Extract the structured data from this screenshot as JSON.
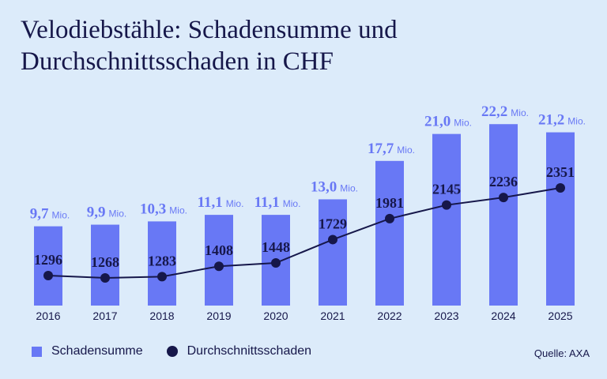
{
  "title": "Velodiebstähle: Schadensumme und Durchschnittsschaden in CHF",
  "source": "Quelle: AXA",
  "legend": {
    "bar_label": "Schadensumme",
    "line_label": "Durchschnittsschaden"
  },
  "colors": {
    "background": "#dcebfa",
    "bar": "#6878f5",
    "bar_label": "#6878f5",
    "line": "#16174a"
  },
  "chart_data": {
    "type": "bar",
    "categories": [
      "2016",
      "2017",
      "2018",
      "2019",
      "2020",
      "2021",
      "2022",
      "2023",
      "2024",
      "2025"
    ],
    "series": [
      {
        "name": "Schadensumme",
        "type": "bar",
        "values": [
          9.7,
          9.9,
          10.3,
          11.1,
          11.1,
          13.0,
          17.7,
          21.0,
          22.2,
          21.2
        ],
        "labels": [
          "9,7",
          "9,9",
          "10,3",
          "11,1",
          "11,1",
          "13,0",
          "17,7",
          "21,0",
          "22,2",
          "21,2"
        ],
        "unit": "Mio."
      },
      {
        "name": "Durchschnittsschaden",
        "type": "line",
        "values": [
          1296,
          1268,
          1283,
          1408,
          1448,
          1729,
          1981,
          2145,
          2236,
          2351
        ],
        "labels": [
          "1296",
          "1268",
          "1283",
          "1408",
          "1448",
          "1729",
          "1981",
          "2145",
          "2236",
          "2351"
        ]
      }
    ],
    "grid": false,
    "legend_position": "bottom-left"
  }
}
